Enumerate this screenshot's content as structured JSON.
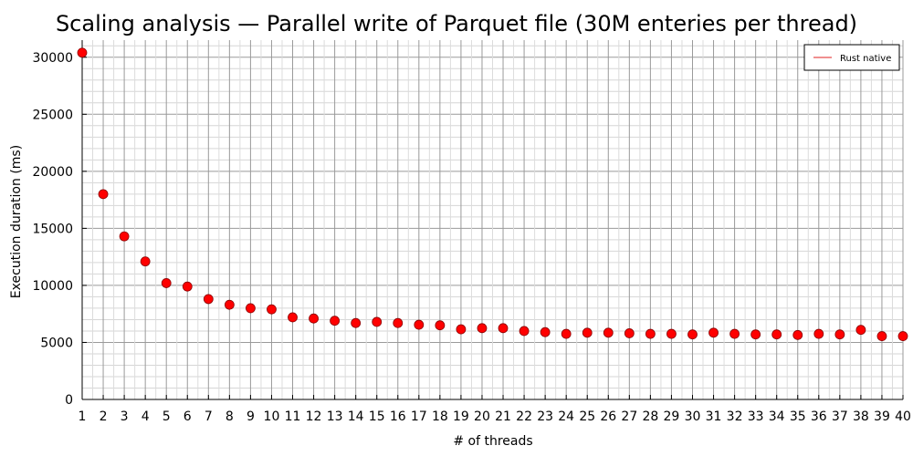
{
  "chart_data": {
    "type": "scatter",
    "title": "Scaling analysis — Parallel write of Parquet file (30M enteries per thread)",
    "xlabel": "# of threads",
    "ylabel": "Execution duration (ms)",
    "xlim": [
      1,
      40
    ],
    "ylim": [
      0,
      31500
    ],
    "x_ticks": [
      1,
      2,
      3,
      4,
      5,
      6,
      7,
      8,
      9,
      10,
      11,
      12,
      13,
      14,
      15,
      16,
      17,
      18,
      19,
      20,
      21,
      22,
      23,
      24,
      25,
      26,
      27,
      28,
      29,
      30,
      31,
      32,
      33,
      34,
      35,
      36,
      37,
      38,
      39,
      40
    ],
    "y_ticks": [
      0,
      5000,
      10000,
      15000,
      20000,
      25000,
      30000
    ],
    "grid": true,
    "legend_position": "top-right",
    "marker_color": "#ff0000",
    "series": [
      {
        "name": "Rust native",
        "x": [
          1,
          2,
          3,
          4,
          5,
          6,
          7,
          8,
          9,
          10,
          11,
          12,
          13,
          14,
          15,
          16,
          17,
          18,
          19,
          20,
          21,
          22,
          23,
          24,
          25,
          26,
          27,
          28,
          29,
          30,
          31,
          32,
          33,
          34,
          35,
          36,
          37,
          38,
          39,
          40
        ],
        "y": [
          30400,
          18000,
          14300,
          12100,
          10200,
          9900,
          8800,
          8300,
          8000,
          7900,
          7200,
          7100,
          6900,
          6700,
          6800,
          6700,
          6550,
          6500,
          6150,
          6250,
          6250,
          6000,
          5900,
          5750,
          5850,
          5850,
          5800,
          5750,
          5750,
          5700,
          5850,
          5750,
          5700,
          5700,
          5650,
          5750,
          5700,
          6100,
          5550,
          5550
        ]
      }
    ]
  }
}
